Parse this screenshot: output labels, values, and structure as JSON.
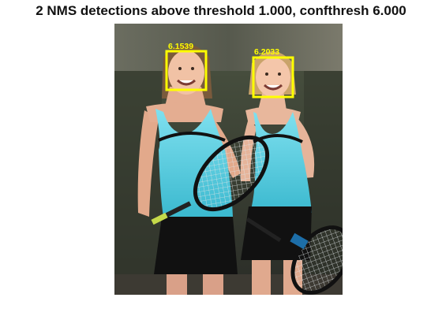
{
  "figure": {
    "title": "2 NMS detections above threshold 1.000, confthresh 6.000"
  },
  "detections": [
    {
      "score_label": "6.1539",
      "subject": "left-player-face"
    },
    {
      "score_label": "6.2033",
      "subject": "right-player-face"
    }
  ],
  "colors": {
    "box": "#ffff00",
    "label": "#ffff00",
    "background": "#ffffff"
  }
}
